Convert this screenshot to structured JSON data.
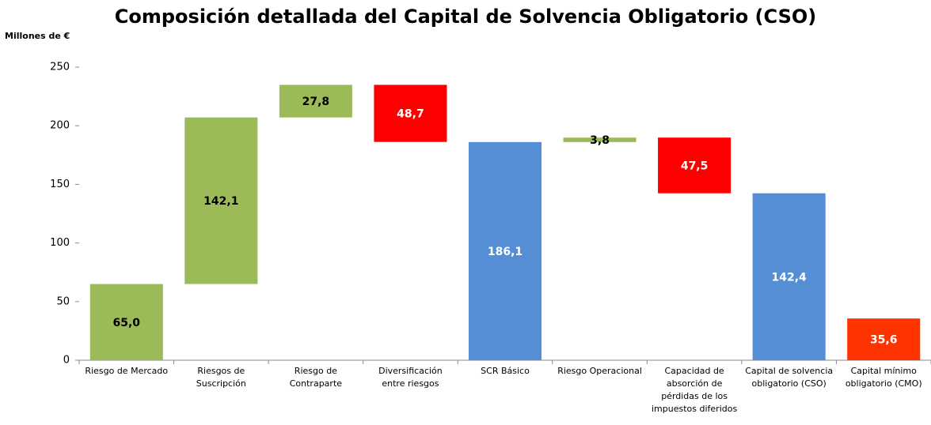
{
  "chart_data": {
    "type": "waterfall",
    "title": "Composición detallada del Capital de Solvencia Obligatorio (CSO)",
    "y_axis_label": "Millones de €",
    "categories": [
      [
        "Riesgo de Mercado"
      ],
      [
        "Riesgos de",
        "Suscripción"
      ],
      [
        "Riesgo de",
        "Contraparte"
      ],
      [
        "Diversificación",
        "entre riesgos"
      ],
      [
        "SCR Básico"
      ],
      [
        "Riesgo Operacional"
      ],
      [
        "Capacidad de",
        "absorción de",
        "pérdidas de los",
        "impuestos diferidos"
      ],
      [
        "Capital de solvencia",
        "obligatorio (CSO)"
      ],
      [
        "Capital mínimo",
        "obligatorio (CMO)"
      ]
    ],
    "values": [
      65.0,
      142.1,
      27.8,
      -48.7,
      186.1,
      3.8,
      -47.5,
      142.4,
      35.6
    ],
    "value_labels": [
      "65,0",
      "142,1",
      "27,8",
      "48,7",
      "186,1",
      "3,8",
      "47,5",
      "142,4",
      "35,6"
    ],
    "kinds": [
      "step",
      "step",
      "step",
      "step",
      "total",
      "step",
      "step",
      "total",
      "total"
    ],
    "colors": [
      "#9bbb59",
      "#9bbb59",
      "#9bbb59",
      "#ff0000",
      "#558ed5",
      "#9bbb59",
      "#ff0000",
      "#558ed5",
      "#ff3300"
    ],
    "label_colors": [
      "#000000",
      "#000000",
      "#000000",
      "#ffffff",
      "#ffffff",
      "#000000",
      "#ffffff",
      "#ffffff",
      "#ffffff"
    ],
    "ylim": [
      0,
      250
    ],
    "yticks": [
      0,
      50,
      100,
      150,
      200,
      250
    ],
    "grid": false
  }
}
